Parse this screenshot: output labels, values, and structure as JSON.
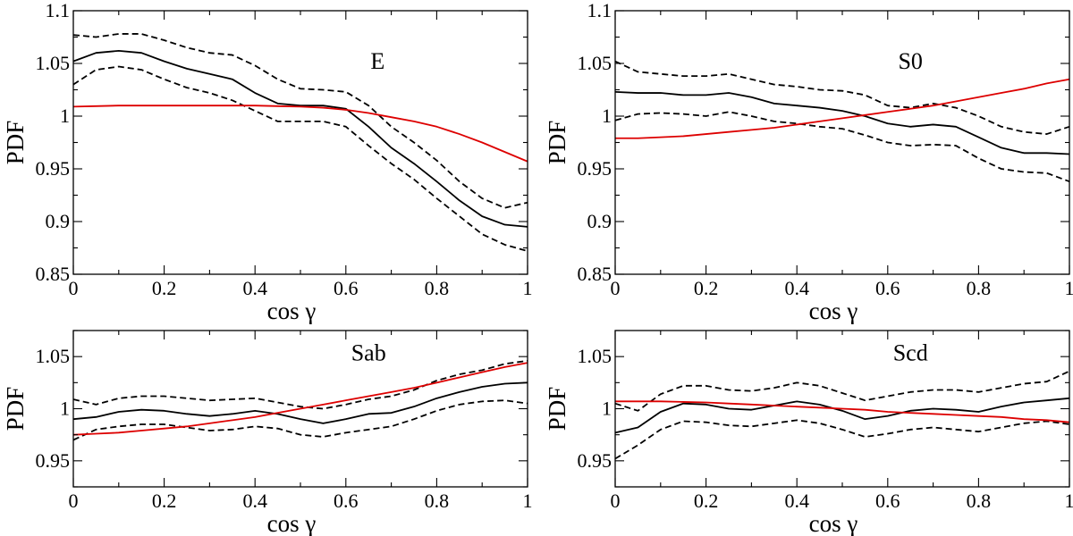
{
  "figure": {
    "background": "#ffffff"
  },
  "chart_data": [
    {
      "type": "line",
      "panel_label": "E",
      "xlabel": "cos γ",
      "ylabel": "PDF",
      "xlim": [
        0,
        1
      ],
      "ylim": [
        0.85,
        1.1
      ],
      "xticks": [
        0,
        0.2,
        0.4,
        0.6,
        0.8,
        1
      ],
      "xtick_labels": [
        "0",
        "0.2",
        "0.4",
        "0.6",
        "0.8",
        "1"
      ],
      "yticks": [
        0.85,
        0.9,
        0.95,
        1,
        1.05,
        1.1
      ],
      "ytick_labels": [
        "0.85",
        "0.9",
        "0.95",
        "1",
        "1.05",
        "1.1"
      ],
      "x": [
        0,
        0.05,
        0.1,
        0.15,
        0.2,
        0.25,
        0.3,
        0.35,
        0.4,
        0.45,
        0.5,
        0.55,
        0.6,
        0.65,
        0.7,
        0.75,
        0.8,
        0.85,
        0.9,
        0.95,
        1
      ],
      "series": [
        {
          "style": "solid",
          "color": "#000000",
          "values": [
            1.052,
            1.06,
            1.062,
            1.06,
            1.052,
            1.045,
            1.04,
            1.035,
            1.022,
            1.012,
            1.01,
            1.01,
            1.007,
            0.99,
            0.97,
            0.955,
            0.938,
            0.92,
            0.905,
            0.897,
            0.895
          ]
        },
        {
          "style": "dashed",
          "color": "#000000",
          "values": [
            1.077,
            1.075,
            1.078,
            1.078,
            1.072,
            1.065,
            1.06,
            1.058,
            1.048,
            1.035,
            1.026,
            1.025,
            1.023,
            1.01,
            0.99,
            0.975,
            0.958,
            0.938,
            0.922,
            0.913,
            0.918
          ]
        },
        {
          "style": "dashed",
          "color": "#000000",
          "values": [
            1.03,
            1.044,
            1.047,
            1.044,
            1.035,
            1.027,
            1.022,
            1.015,
            1.005,
            0.995,
            0.995,
            0.995,
            0.99,
            0.972,
            0.955,
            0.94,
            0.922,
            0.905,
            0.888,
            0.878,
            0.872
          ]
        },
        {
          "style": "solid",
          "color": "#dd0000",
          "values": [
            1.009,
            1.0095,
            1.01,
            1.01,
            1.01,
            1.01,
            1.01,
            1.01,
            1.01,
            1.0095,
            1.009,
            1.008,
            1.006,
            1.003,
            0.999,
            0.995,
            0.99,
            0.983,
            0.975,
            0.966,
            0.957
          ]
        }
      ]
    },
    {
      "type": "line",
      "panel_label": "S0",
      "xlabel": "cos γ",
      "ylabel": "PDF",
      "xlim": [
        0,
        1
      ],
      "ylim": [
        0.85,
        1.1
      ],
      "xticks": [
        0,
        0.2,
        0.4,
        0.6,
        0.8,
        1
      ],
      "xtick_labels": [
        "0",
        "0.2",
        "0.4",
        "0.6",
        "0.8",
        "1"
      ],
      "yticks": [
        0.85,
        0.9,
        0.95,
        1,
        1.05,
        1.1
      ],
      "ytick_labels": [
        "0.85",
        "0.9",
        "0.95",
        "1",
        "1.05",
        "1.1"
      ],
      "x": [
        0,
        0.05,
        0.1,
        0.15,
        0.2,
        0.25,
        0.3,
        0.35,
        0.4,
        0.45,
        0.5,
        0.55,
        0.6,
        0.65,
        0.7,
        0.75,
        0.8,
        0.85,
        0.9,
        0.95,
        1
      ],
      "series": [
        {
          "style": "solid",
          "color": "#000000",
          "values": [
            1.023,
            1.022,
            1.022,
            1.02,
            1.02,
            1.022,
            1.018,
            1.012,
            1.01,
            1.008,
            1.005,
            1.0,
            0.993,
            0.99,
            0.992,
            0.99,
            0.98,
            0.97,
            0.965,
            0.965,
            0.964
          ]
        },
        {
          "style": "dashed",
          "color": "#000000",
          "values": [
            1.052,
            1.042,
            1.04,
            1.038,
            1.038,
            1.04,
            1.035,
            1.03,
            1.028,
            1.025,
            1.024,
            1.02,
            1.01,
            1.008,
            1.012,
            1.008,
            1.0,
            0.99,
            0.985,
            0.983,
            0.99
          ]
        },
        {
          "style": "dashed",
          "color": "#000000",
          "values": [
            0.996,
            1.002,
            1.003,
            1.002,
            1.0,
            1.004,
            1.0,
            0.995,
            0.993,
            0.99,
            0.988,
            0.982,
            0.975,
            0.972,
            0.973,
            0.972,
            0.96,
            0.95,
            0.947,
            0.946,
            0.938
          ]
        },
        {
          "style": "solid",
          "color": "#dd0000",
          "values": [
            0.979,
            0.979,
            0.98,
            0.981,
            0.983,
            0.985,
            0.987,
            0.989,
            0.992,
            0.995,
            0.998,
            1.001,
            1.004,
            1.007,
            1.01,
            1.014,
            1.018,
            1.022,
            1.026,
            1.031,
            1.035
          ]
        }
      ]
    },
    {
      "type": "line",
      "panel_label": "Sab",
      "xlabel": "cos γ",
      "ylabel": "PDF",
      "xlim": [
        0,
        1
      ],
      "ylim": [
        0.925,
        1.075
      ],
      "xticks": [
        0,
        0.2,
        0.4,
        0.6,
        0.8,
        1
      ],
      "xtick_labels": [
        "0",
        "0.2",
        "0.4",
        "0.6",
        "0.8",
        "1"
      ],
      "yticks": [
        0.95,
        1,
        1.05
      ],
      "ytick_labels": [
        "0.95",
        "1",
        "1.05"
      ],
      "x": [
        0,
        0.05,
        0.1,
        0.15,
        0.2,
        0.25,
        0.3,
        0.35,
        0.4,
        0.45,
        0.5,
        0.55,
        0.6,
        0.65,
        0.7,
        0.75,
        0.8,
        0.85,
        0.9,
        0.95,
        1
      ],
      "series": [
        {
          "style": "solid",
          "color": "#000000",
          "values": [
            0.99,
            0.992,
            0.997,
            0.999,
            0.998,
            0.995,
            0.993,
            0.995,
            0.998,
            0.995,
            0.99,
            0.986,
            0.99,
            0.995,
            0.996,
            1.002,
            1.01,
            1.016,
            1.021,
            1.024,
            1.025
          ]
        },
        {
          "style": "dashed",
          "color": "#000000",
          "values": [
            1.009,
            1.004,
            1.01,
            1.012,
            1.012,
            1.01,
            1.008,
            1.009,
            1.01,
            1.006,
            1.002,
            1.0,
            1.004,
            1.009,
            1.012,
            1.018,
            1.027,
            1.033,
            1.037,
            1.043,
            1.046
          ]
        },
        {
          "style": "dashed",
          "color": "#000000",
          "values": [
            0.97,
            0.98,
            0.983,
            0.985,
            0.985,
            0.982,
            0.979,
            0.98,
            0.983,
            0.981,
            0.975,
            0.973,
            0.977,
            0.98,
            0.983,
            0.99,
            0.998,
            1.004,
            1.007,
            1.008,
            1.005
          ]
        },
        {
          "style": "solid",
          "color": "#dd0000",
          "values": [
            0.975,
            0.976,
            0.977,
            0.979,
            0.981,
            0.983,
            0.986,
            0.989,
            0.992,
            0.996,
            1.0,
            1.004,
            1.008,
            1.012,
            1.016,
            1.02,
            1.025,
            1.03,
            1.035,
            1.04,
            1.044
          ]
        }
      ]
    },
    {
      "type": "line",
      "panel_label": "Scd",
      "xlabel": "cos γ",
      "ylabel": "PDF",
      "xlim": [
        0,
        1
      ],
      "ylim": [
        0.925,
        1.075
      ],
      "xticks": [
        0,
        0.2,
        0.4,
        0.6,
        0.8,
        1
      ],
      "xtick_labels": [
        "0",
        "0.2",
        "0.4",
        "0.6",
        "0.8",
        "1"
      ],
      "yticks": [
        0.95,
        1,
        1.05
      ],
      "ytick_labels": [
        "0.95",
        "1",
        "1.05"
      ],
      "x": [
        0,
        0.05,
        0.1,
        0.15,
        0.2,
        0.25,
        0.3,
        0.35,
        0.4,
        0.45,
        0.5,
        0.55,
        0.6,
        0.65,
        0.7,
        0.75,
        0.8,
        0.85,
        0.9,
        0.95,
        1
      ],
      "series": [
        {
          "style": "solid",
          "color": "#000000",
          "values": [
            0.977,
            0.982,
            0.997,
            1.005,
            1.004,
            1.0,
            0.999,
            1.003,
            1.007,
            1.004,
            0.998,
            0.99,
            0.993,
            0.998,
            1.0,
            0.999,
            0.997,
            1.002,
            1.006,
            1.008,
            1.01
          ]
        },
        {
          "style": "dashed",
          "color": "#000000",
          "values": [
            1.005,
            0.998,
            1.014,
            1.022,
            1.022,
            1.018,
            1.017,
            1.02,
            1.025,
            1.022,
            1.015,
            1.008,
            1.012,
            1.016,
            1.018,
            1.018,
            1.016,
            1.02,
            1.024,
            1.026,
            1.036
          ]
        },
        {
          "style": "dashed",
          "color": "#000000",
          "values": [
            0.952,
            0.965,
            0.98,
            0.988,
            0.987,
            0.984,
            0.983,
            0.986,
            0.989,
            0.986,
            0.98,
            0.973,
            0.976,
            0.98,
            0.982,
            0.98,
            0.978,
            0.982,
            0.986,
            0.988,
            0.985
          ]
        },
        {
          "style": "solid",
          "color": "#dd0000",
          "values": [
            1.007,
            1.007,
            1.007,
            1.0065,
            1.006,
            1.005,
            1.004,
            1.003,
            1.002,
            1.001,
            1.0,
            0.999,
            0.997,
            0.996,
            0.995,
            0.994,
            0.993,
            0.992,
            0.99,
            0.989,
            0.987
          ]
        }
      ]
    }
  ]
}
